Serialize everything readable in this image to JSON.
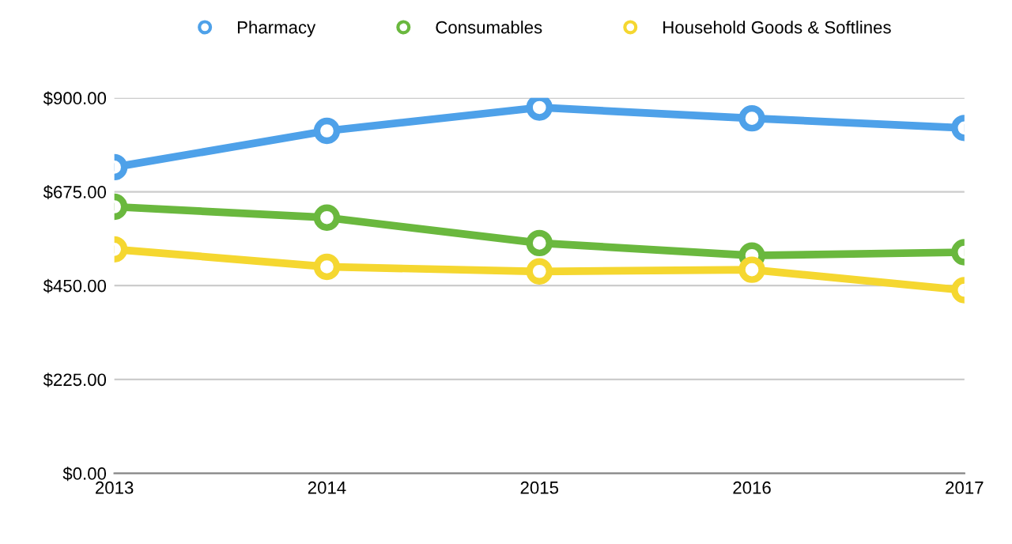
{
  "chart_data": {
    "type": "line",
    "categories": [
      "2013",
      "2014",
      "2015",
      "2016",
      "2017"
    ],
    "series": [
      {
        "name": "Pharmacy",
        "color": "#4ea1e9",
        "values": [
          734,
          821,
          877,
          851,
          828
        ]
      },
      {
        "name": "Consumables",
        "color": "#6ab83e",
        "values": [
          639,
          613,
          552,
          522,
          530
        ]
      },
      {
        "name": "Household Goods & Softlines",
        "color": "#f5d730",
        "values": [
          537,
          495,
          484,
          488,
          439
        ]
      }
    ],
    "ylim": [
      0,
      900
    ],
    "yticks": [
      {
        "value": 0,
        "label": "$0.00"
      },
      {
        "value": 225,
        "label": "$225.00"
      },
      {
        "value": 450,
        "label": "$450.00"
      },
      {
        "value": 675,
        "label": "$675.00"
      },
      {
        "value": 900,
        "label": "$900.00"
      }
    ],
    "grid": "y",
    "legend": "top",
    "marker": "circle",
    "line_style": "solid"
  }
}
